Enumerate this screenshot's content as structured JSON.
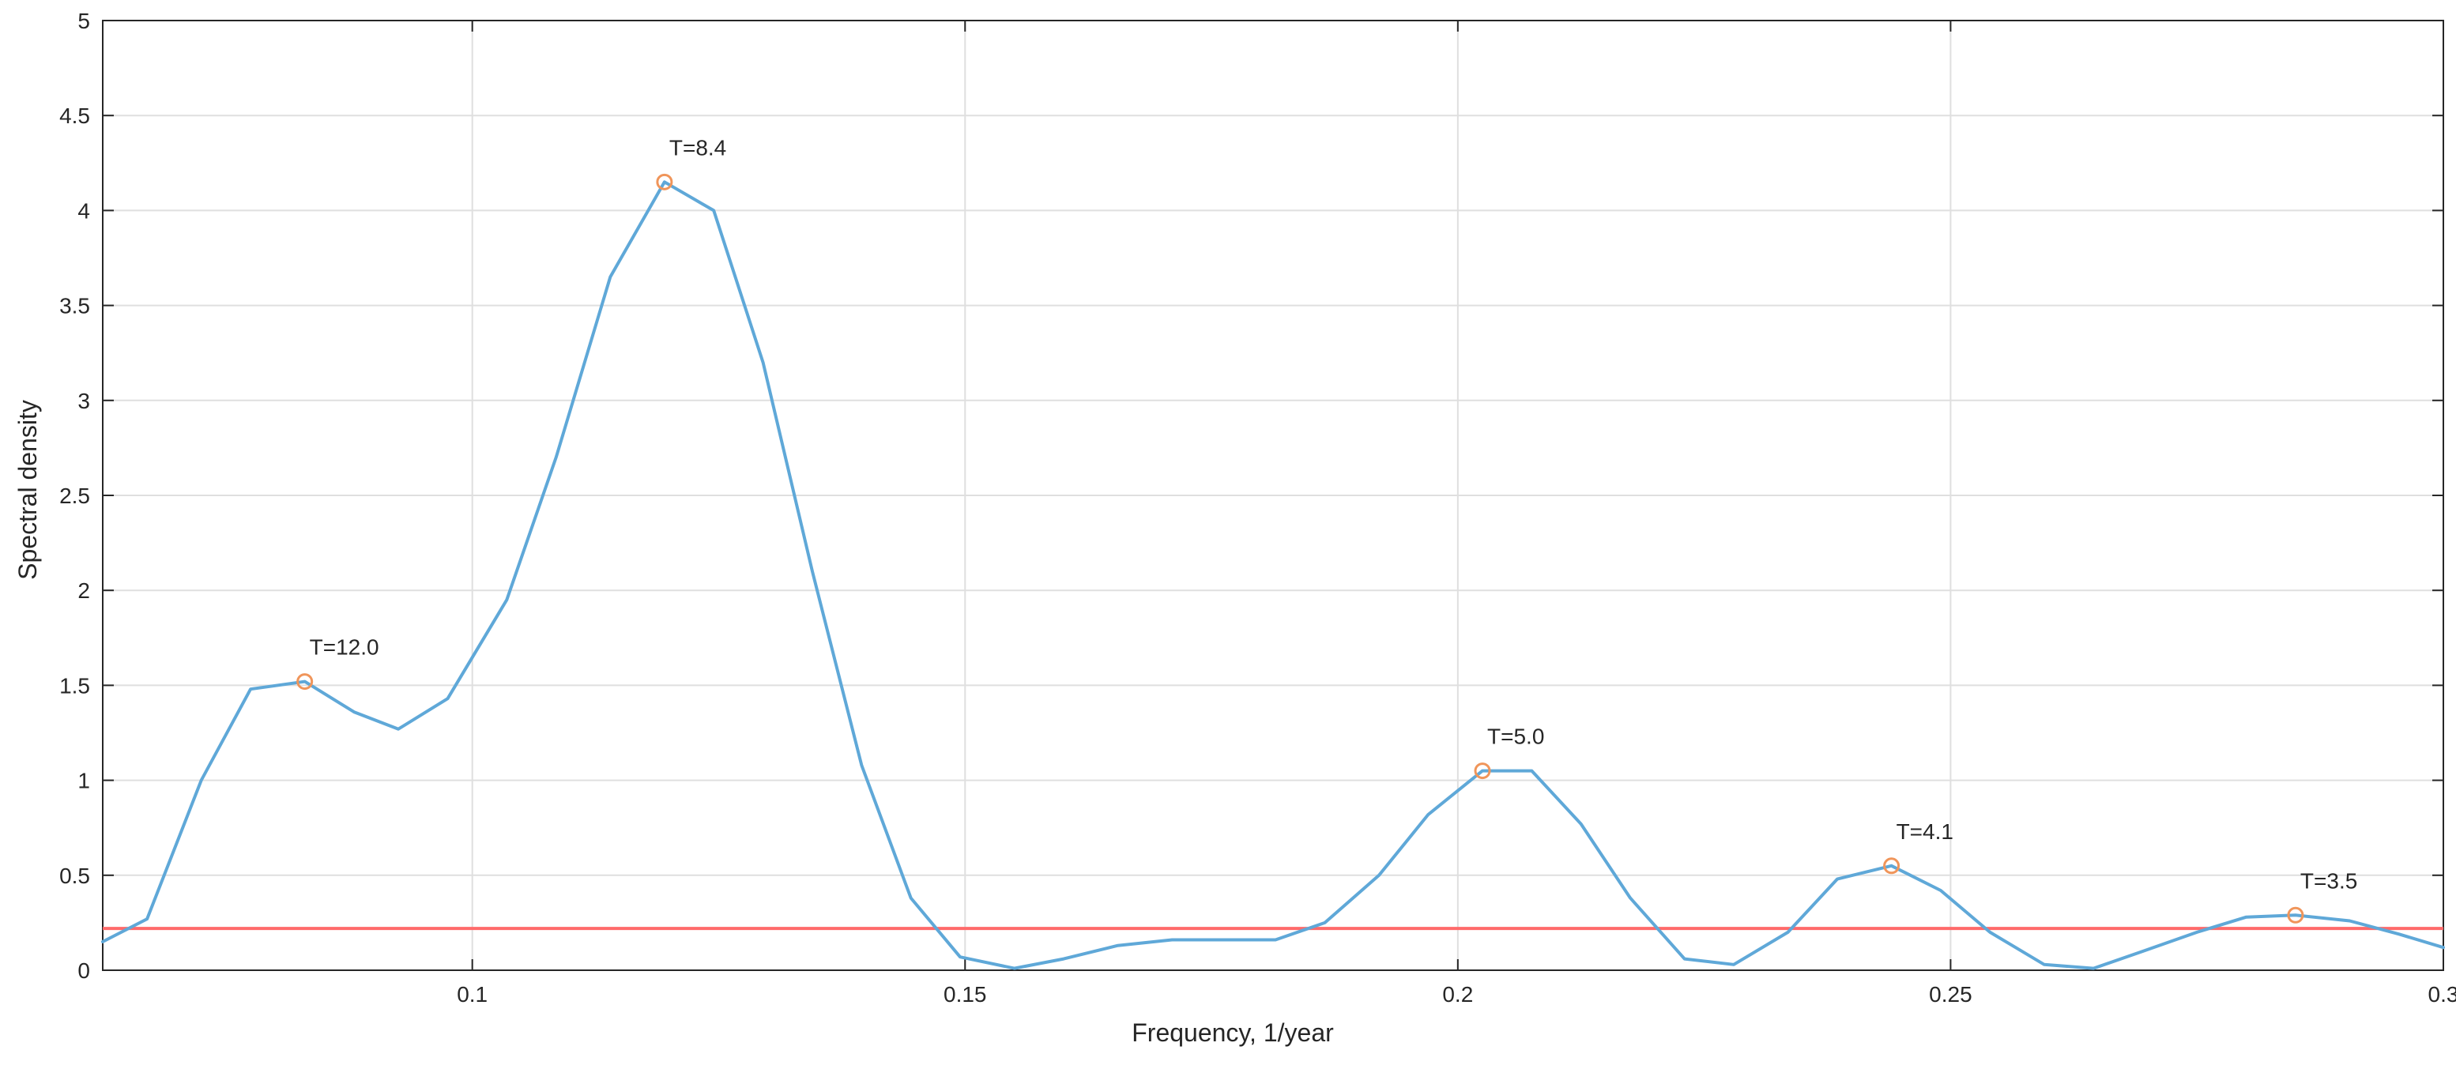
{
  "chart_data": {
    "type": "line",
    "xlabel": "Frequency, 1/year",
    "ylabel": "Spectral density",
    "xlim": [
      0.0625,
      0.3
    ],
    "ylim": [
      0,
      5
    ],
    "grid": true,
    "xticks": [
      0.1,
      0.15,
      0.2,
      0.25,
      0.3
    ],
    "xtick_labels": [
      "0.1",
      "0.15",
      "0.2",
      "0.25",
      "0.3"
    ],
    "yticks": [
      0,
      0.5,
      1,
      1.5,
      2,
      2.5,
      3,
      3.5,
      4,
      4.5,
      5
    ],
    "ytick_labels": [
      "0",
      "0.5",
      "1",
      "1.5",
      "2",
      "2.5",
      "3",
      "3.5",
      "4",
      "4.5",
      "5"
    ],
    "series": [
      {
        "color": "#5fa8d8",
        "x": [
          0.0625,
          0.067,
          0.0725,
          0.0775,
          0.083,
          0.088,
          0.0925,
          0.0975,
          0.1035,
          0.1085,
          0.114,
          0.1195,
          0.1245,
          0.1295,
          0.1345,
          0.1395,
          0.1445,
          0.1495,
          0.155,
          0.16,
          0.1655,
          0.171,
          0.1765,
          0.1815,
          0.1865,
          0.192,
          0.197,
          0.2025,
          0.2075,
          0.2125,
          0.2175,
          0.223,
          0.228,
          0.2335,
          0.2385,
          0.244,
          0.249,
          0.254,
          0.2595,
          0.2645,
          0.2695,
          0.275,
          0.28,
          0.285,
          0.2905,
          0.2955,
          0.3
        ],
        "y": [
          0.15,
          0.27,
          1.0,
          1.48,
          1.52,
          1.36,
          1.27,
          1.43,
          1.95,
          2.7,
          3.65,
          4.15,
          4.0,
          3.2,
          2.1,
          1.08,
          0.38,
          0.07,
          0.01,
          0.06,
          0.13,
          0.16,
          0.16,
          0.16,
          0.25,
          0.5,
          0.82,
          1.05,
          1.05,
          0.77,
          0.38,
          0.06,
          0.03,
          0.2,
          0.48,
          0.55,
          0.42,
          0.2,
          0.03,
          0.01,
          0.1,
          0.2,
          0.28,
          0.29,
          0.26,
          0.19,
          0.12
        ]
      }
    ],
    "threshold": {
      "y": 0.22,
      "color": "#ff6a6a"
    },
    "peaks": [
      {
        "x": 0.083,
        "y": 1.52,
        "label": "T=12.0"
      },
      {
        "x": 0.1195,
        "y": 4.15,
        "label": "T=8.4"
      },
      {
        "x": 0.2025,
        "y": 1.05,
        "label": "T=5.0"
      },
      {
        "x": 0.244,
        "y": 0.55,
        "label": "T=4.1"
      },
      {
        "x": 0.285,
        "y": 0.29,
        "label": "T=3.5"
      }
    ],
    "marker_color": "#f0955a"
  }
}
